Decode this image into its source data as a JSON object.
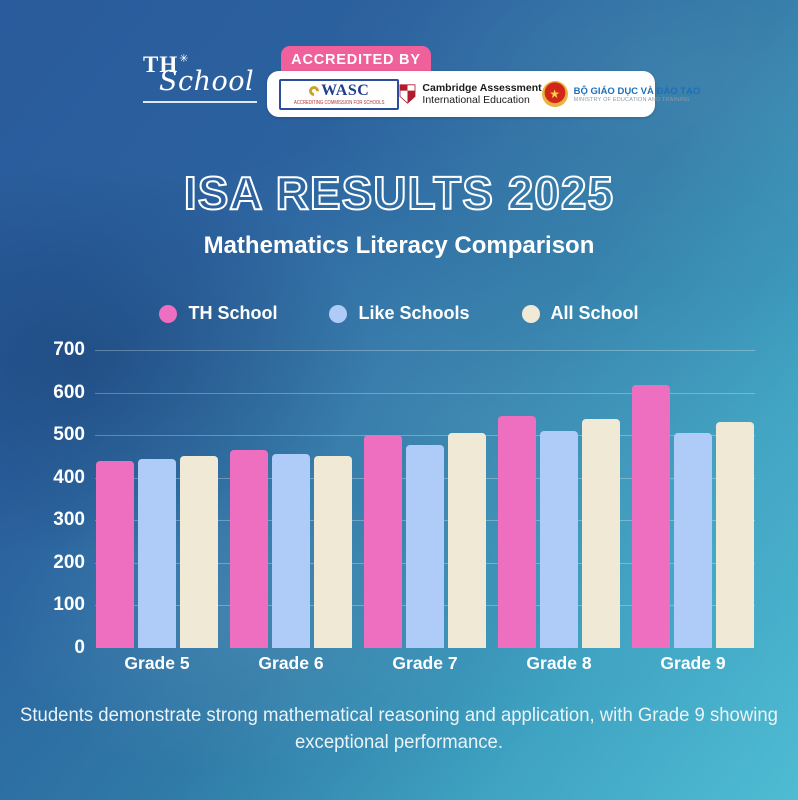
{
  "background": {
    "top_left_color": "#2a5b9c",
    "bottom_right_color": "#4fbcd3"
  },
  "header": {
    "logo": {
      "th": "TH",
      "star": "✳",
      "school": "School"
    },
    "accreditation": {
      "tab_label": "ACCREDITED BY",
      "tab_color": "#f0609b",
      "wasc": {
        "name": "WASC",
        "caption": "ACCREDITING COMMISSION FOR SCHOOLS"
      },
      "cambridge": {
        "line1": "Cambridge Assessment",
        "line2": "International Education"
      },
      "moet": {
        "line1": "BỘ GIÁO DỤC VÀ ĐÀO TẠO",
        "line2": "MINISTRY OF EDUCATION AND TRAINING"
      }
    }
  },
  "title": "ISA RESULTS 2025",
  "subtitle": "Mathematics Literacy Comparison",
  "chart_data": {
    "type": "bar",
    "categories": [
      "Grade 5",
      "Grade 6",
      "Grade 7",
      "Grade 8",
      "Grade 9"
    ],
    "series": [
      {
        "name": "TH School",
        "color": "#ee6fc0",
        "values": [
          440,
          465,
          500,
          545,
          618
        ]
      },
      {
        "name": "Like Schools",
        "color": "#afcbf7",
        "values": [
          445,
          455,
          478,
          510,
          505
        ]
      },
      {
        "name": "All School",
        "color": "#f0e9d6",
        "values": [
          450,
          450,
          505,
          538,
          530
        ]
      }
    ],
    "title": "ISA RESULTS 2025 — Mathematics Literacy Comparison",
    "xlabel": "",
    "ylabel": "",
    "ylim": [
      0,
      700
    ],
    "ytick_step": 100,
    "grid": true,
    "legend_position": "top"
  },
  "caption": {
    "line1": "Students demonstrate strong mathematical reasoning and application, with Grade 9 showing",
    "line2": "exceptional performance."
  }
}
